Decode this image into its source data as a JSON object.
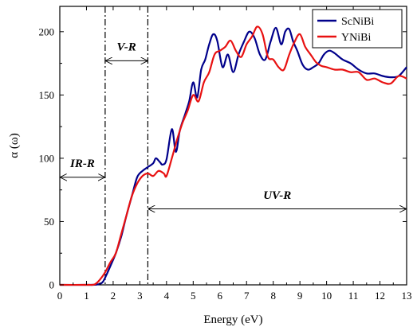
{
  "chart_data": {
    "type": "line",
    "title": "",
    "xlabel": "Energy (eV)",
    "ylabel": "α (ω)",
    "xlim": [
      0,
      13
    ],
    "ylim": [
      0,
      220
    ],
    "xticks": [
      0,
      1,
      2,
      3,
      4,
      5,
      6,
      7,
      8,
      9,
      10,
      11,
      12,
      13
    ],
    "yticks": [
      0,
      50,
      100,
      150,
      200
    ],
    "grid": false,
    "legend": "top-right",
    "series": [
      {
        "name": "ScNiBi",
        "color": "#00008b",
        "x": [
          0,
          1.0,
          1.4,
          1.6,
          1.75,
          1.9,
          2.1,
          2.3,
          2.5,
          2.7,
          2.9,
          3.1,
          3.3,
          3.5,
          3.6,
          3.75,
          3.85,
          4.0,
          4.2,
          4.35,
          4.5,
          4.7,
          4.85,
          5.0,
          5.15,
          5.3,
          5.45,
          5.6,
          5.75,
          5.9,
          6.1,
          6.3,
          6.5,
          6.7,
          6.9,
          7.1,
          7.3,
          7.5,
          7.7,
          7.9,
          8.1,
          8.3,
          8.45,
          8.6,
          8.75,
          8.9,
          9.1,
          9.3,
          9.5,
          9.7,
          9.9,
          10.1,
          10.3,
          10.6,
          10.9,
          11.2,
          11.5,
          11.8,
          12.1,
          12.4,
          12.7,
          13.0
        ],
        "y": [
          0,
          0,
          0.3,
          2,
          8,
          15,
          25,
          38,
          55,
          70,
          85,
          90,
          93,
          96,
          100,
          97,
          95,
          99,
          123,
          105,
          122,
          135,
          145,
          160,
          148,
          170,
          178,
          190,
          198,
          193,
          172,
          182,
          168,
          182,
          192,
          200,
          195,
          182,
          178,
          192,
          203,
          190,
          200,
          202,
          192,
          185,
          174,
          170,
          172,
          175,
          182,
          185,
          183,
          178,
          175,
          170,
          167,
          167,
          165,
          164,
          165,
          172
        ]
      },
      {
        "name": "YNiBi",
        "color": "#e81111",
        "x": [
          0,
          1.0,
          1.3,
          1.5,
          1.7,
          1.9,
          2.1,
          2.3,
          2.5,
          2.7,
          2.9,
          3.1,
          3.3,
          3.5,
          3.7,
          3.9,
          4.0,
          4.2,
          4.4,
          4.6,
          4.8,
          5.0,
          5.2,
          5.4,
          5.6,
          5.8,
          6.0,
          6.2,
          6.4,
          6.6,
          6.8,
          7.0,
          7.2,
          7.4,
          7.6,
          7.8,
          8.0,
          8.2,
          8.4,
          8.6,
          8.8,
          9.0,
          9.2,
          9.4,
          9.6,
          9.8,
          10.0,
          10.3,
          10.6,
          10.9,
          11.2,
          11.5,
          11.8,
          12.1,
          12.4,
          12.7,
          13.0
        ],
        "y": [
          0,
          0,
          0.3,
          4,
          10,
          18,
          25,
          40,
          55,
          70,
          80,
          86,
          88,
          86,
          90,
          88,
          86,
          100,
          115,
          128,
          138,
          150,
          145,
          160,
          168,
          182,
          185,
          188,
          193,
          185,
          180,
          190,
          196,
          204,
          198,
          180,
          178,
          172,
          170,
          182,
          192,
          198,
          188,
          182,
          176,
          173,
          172,
          170,
          170,
          168,
          168,
          162,
          163,
          160,
          159,
          165,
          163
        ]
      }
    ],
    "region_markers": [
      {
        "x": 1.7,
        "label": ""
      },
      {
        "x": 3.3,
        "label": ""
      }
    ],
    "regions": [
      {
        "label": "IR-R",
        "from": 0,
        "to": 1.7,
        "y": 85,
        "label_y": 93
      },
      {
        "label": "V-R",
        "from": 1.7,
        "to": 3.3,
        "y": 177,
        "label_y": 185
      },
      {
        "label": "UV-R",
        "from": 3.3,
        "to": 13,
        "y": 60,
        "label_y": 68
      }
    ]
  }
}
